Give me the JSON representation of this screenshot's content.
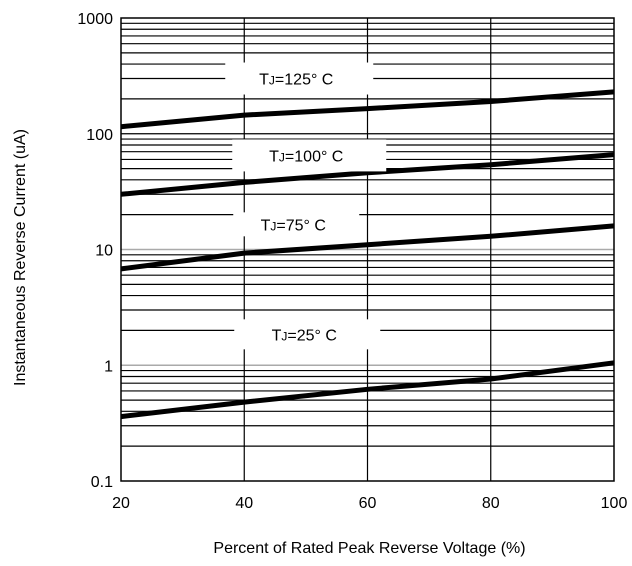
{
  "chart_data": {
    "type": "line",
    "title": "",
    "xlabel": "Percent of Rated Peak Reverse Voltage (%)",
    "ylabel": "Instantaneous Reverse Current (uA)",
    "xlim": [
      20,
      100
    ],
    "ylim": [
      0.1,
      1000
    ],
    "y_scale": "log",
    "grid": true,
    "x_ticks": [
      20,
      40,
      60,
      80,
      100
    ],
    "x_tick_labels": [
      "20",
      "40",
      "60",
      "80",
      "100"
    ],
    "y_ticks": [
      0.1,
      1,
      10,
      100,
      1000
    ],
    "y_tick_labels": [
      "0.1",
      "1",
      "10",
      "100",
      "1000"
    ],
    "x": [
      20,
      40,
      60,
      80,
      100
    ],
    "series": [
      {
        "name": "TJ=125° C",
        "label_main": "T",
        "label_sub": "J",
        "label_rest": "=125° C",
        "values": [
          115,
          145,
          165,
          190,
          230
        ]
      },
      {
        "name": "TJ=100° C",
        "label_main": "T",
        "label_sub": "J",
        "label_rest": "=100° C",
        "values": [
          30,
          38,
          46,
          54,
          66
        ]
      },
      {
        "name": "TJ=75° C",
        "label_main": "T",
        "label_sub": "J",
        "label_rest": "=75° C",
        "values": [
          6.8,
          9.3,
          11,
          13,
          16
        ]
      },
      {
        "name": "TJ=25° C",
        "label_main": "T",
        "label_sub": "J",
        "label_rest": "=25° C",
        "values": [
          0.36,
          0.48,
          0.62,
          0.76,
          1.05
        ]
      }
    ],
    "colors": {
      "line": "#000000",
      "grid": "#000000",
      "grid_decade": "#aaaaaa",
      "background": "#ffffff"
    }
  }
}
